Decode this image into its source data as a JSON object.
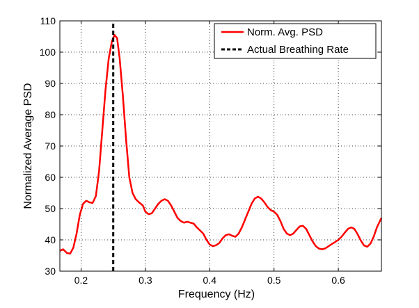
{
  "chart_data": {
    "type": "line",
    "xlabel": "Frequency (Hz)",
    "ylabel": "Normalized Average PSD",
    "xlim": [
      0.167,
      0.667
    ],
    "ylim": [
      30,
      110
    ],
    "xticks": [
      0.2,
      0.3,
      0.4,
      0.5,
      0.6
    ],
    "xtick_labels": [
      "0.2",
      "0.3",
      "0.4",
      "0.5",
      "0.6"
    ],
    "yticks": [
      30,
      40,
      50,
      60,
      70,
      80,
      90,
      100,
      110
    ],
    "ytick_labels": [
      "30",
      "40",
      "50",
      "60",
      "70",
      "80",
      "90",
      "100",
      "110"
    ],
    "grid": true,
    "legend_position": "top-right",
    "series": [
      {
        "name": "Norm. Avg. PSD",
        "color": "#ff0000",
        "style": "solid",
        "points": [
          [
            0.167,
            36.5
          ],
          [
            0.172,
            37.0
          ],
          [
            0.178,
            35.8
          ],
          [
            0.183,
            35.6
          ],
          [
            0.188,
            37.5
          ],
          [
            0.193,
            42.0
          ],
          [
            0.198,
            48.0
          ],
          [
            0.203,
            51.5
          ],
          [
            0.208,
            52.5
          ],
          [
            0.213,
            52.0
          ],
          [
            0.218,
            51.8
          ],
          [
            0.223,
            54.0
          ],
          [
            0.228,
            62.0
          ],
          [
            0.233,
            75.0
          ],
          [
            0.238,
            88.0
          ],
          [
            0.243,
            98.0
          ],
          [
            0.248,
            103.5
          ],
          [
            0.252,
            105.5
          ],
          [
            0.256,
            104.5
          ],
          [
            0.26,
            98.0
          ],
          [
            0.265,
            86.0
          ],
          [
            0.27,
            72.0
          ],
          [
            0.275,
            60.0
          ],
          [
            0.28,
            55.0
          ],
          [
            0.285,
            53.0
          ],
          [
            0.29,
            52.0
          ],
          [
            0.296,
            51.0
          ],
          [
            0.3,
            49.0
          ],
          [
            0.305,
            48.2
          ],
          [
            0.31,
            48.5
          ],
          [
            0.315,
            50.0
          ],
          [
            0.32,
            51.5
          ],
          [
            0.325,
            52.5
          ],
          [
            0.33,
            53.0
          ],
          [
            0.335,
            52.5
          ],
          [
            0.34,
            51.0
          ],
          [
            0.345,
            49.0
          ],
          [
            0.35,
            47.0
          ],
          [
            0.355,
            46.0
          ],
          [
            0.36,
            45.5
          ],
          [
            0.365,
            45.8
          ],
          [
            0.37,
            45.5
          ],
          [
            0.375,
            45.2
          ],
          [
            0.38,
            44.0
          ],
          [
            0.385,
            43.0
          ],
          [
            0.39,
            42.0
          ],
          [
            0.395,
            40.0
          ],
          [
            0.4,
            38.5
          ],
          [
            0.405,
            38.0
          ],
          [
            0.41,
            38.3
          ],
          [
            0.415,
            39.0
          ],
          [
            0.42,
            40.5
          ],
          [
            0.425,
            41.5
          ],
          [
            0.43,
            41.8
          ],
          [
            0.435,
            41.3
          ],
          [
            0.44,
            41.0
          ],
          [
            0.445,
            42.0
          ],
          [
            0.45,
            44.0
          ],
          [
            0.455,
            46.5
          ],
          [
            0.46,
            49.0
          ],
          [
            0.465,
            51.5
          ],
          [
            0.47,
            53.2
          ],
          [
            0.475,
            53.8
          ],
          [
            0.48,
            53.2
          ],
          [
            0.485,
            52.0
          ],
          [
            0.49,
            50.5
          ],
          [
            0.495,
            49.5
          ],
          [
            0.5,
            49.0
          ],
          [
            0.505,
            48.0
          ],
          [
            0.51,
            46.0
          ],
          [
            0.515,
            43.5
          ],
          [
            0.52,
            42.0
          ],
          [
            0.525,
            41.5
          ],
          [
            0.53,
            42.0
          ],
          [
            0.535,
            43.2
          ],
          [
            0.54,
            44.3
          ],
          [
            0.545,
            44.5
          ],
          [
            0.55,
            43.5
          ],
          [
            0.555,
            41.5
          ],
          [
            0.56,
            39.5
          ],
          [
            0.565,
            38.0
          ],
          [
            0.57,
            37.2
          ],
          [
            0.575,
            37.0
          ],
          [
            0.58,
            37.3
          ],
          [
            0.585,
            38.0
          ],
          [
            0.59,
            38.7
          ],
          [
            0.595,
            39.3
          ],
          [
            0.6,
            40.0
          ],
          [
            0.605,
            41.0
          ],
          [
            0.61,
            42.3
          ],
          [
            0.615,
            43.5
          ],
          [
            0.62,
            44.0
          ],
          [
            0.625,
            43.5
          ],
          [
            0.63,
            41.8
          ],
          [
            0.635,
            39.8
          ],
          [
            0.64,
            38.2
          ],
          [
            0.645,
            37.8
          ],
          [
            0.65,
            38.8
          ],
          [
            0.655,
            41.0
          ],
          [
            0.66,
            44.0
          ],
          [
            0.667,
            47.0
          ]
        ]
      },
      {
        "name": "Actual Breathing Rate",
        "color": "#000000",
        "style": "dashed",
        "points": [
          [
            0.25,
            30
          ],
          [
            0.25,
            110
          ]
        ]
      }
    ]
  }
}
